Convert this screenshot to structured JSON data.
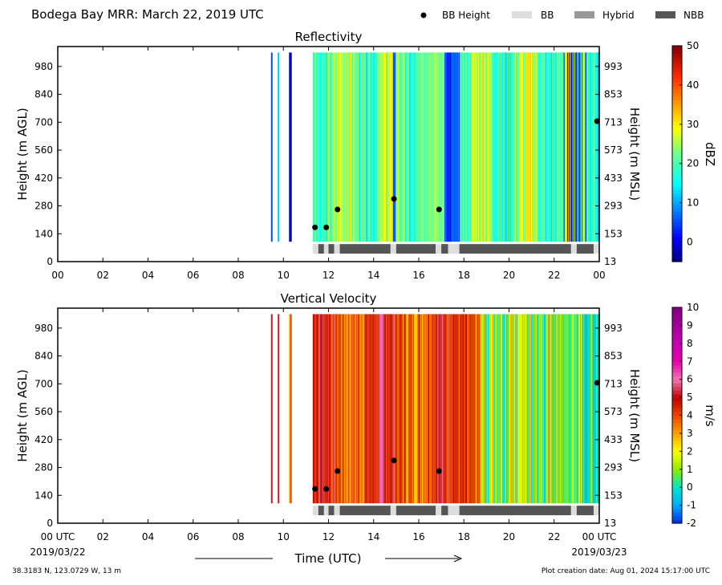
{
  "figure": {
    "title": "Bodega Bay MRR:  March 22, 2019 UTC",
    "footer_left": "38.3183 N, 123.0729 W, 13 m",
    "footer_right": "Plot creation date: Aug 01, 2024 15:17:00 UTC",
    "xlabel": "Time (UTC)",
    "date_start": "2019/03/22",
    "date_end": "2019/03/23"
  },
  "legend": [
    {
      "label": "BB Height",
      "kind": "dot",
      "color": "#000000"
    },
    {
      "label": "BB",
      "kind": "box",
      "color": "#dddddd"
    },
    {
      "label": "Hybrid",
      "kind": "box",
      "color": "#999999"
    },
    {
      "label": "NBB",
      "kind": "box",
      "color": "#555555"
    }
  ],
  "chart_data": [
    {
      "type": "heatmap",
      "title": "Reflectivity",
      "ylabel": "Height (m AGL)",
      "y2label": "Height (m MSL)",
      "colorbar_label": "dBZ",
      "xlim": [
        0,
        24
      ],
      "ylim": [
        0,
        1080
      ],
      "x_ticks": [
        "00",
        "02",
        "04",
        "06",
        "08",
        "10",
        "12",
        "14",
        "16",
        "18",
        "20",
        "22",
        "00"
      ],
      "y_ticks": [
        0,
        140,
        280,
        420,
        560,
        700,
        840,
        980
      ],
      "y2_ticks": [
        13,
        153,
        293,
        433,
        573,
        713,
        853,
        993
      ],
      "colorbar_range": [
        -5,
        50
      ],
      "colorbar_ticks": [
        0,
        10,
        20,
        30,
        40,
        50
      ],
      "colormap": "jet",
      "bb_height_points": [
        {
          "x": 11.4,
          "y": 172
        },
        {
          "x": 11.9,
          "y": 172
        },
        {
          "x": 12.4,
          "y": 262
        },
        {
          "x": 14.9,
          "y": 315
        },
        {
          "x": 16.9,
          "y": 262
        },
        {
          "x": 23.9,
          "y": 705
        }
      ],
      "bb_type_segments": [
        {
          "start": 11.3,
          "end": 11.55,
          "type": "BB"
        },
        {
          "start": 11.55,
          "end": 11.8,
          "type": "NBB"
        },
        {
          "start": 11.8,
          "end": 12.0,
          "type": "BB"
        },
        {
          "start": 12.0,
          "end": 12.25,
          "type": "NBB"
        },
        {
          "start": 12.25,
          "end": 12.5,
          "type": "BB"
        },
        {
          "start": 12.5,
          "end": 14.75,
          "type": "NBB"
        },
        {
          "start": 14.75,
          "end": 15.0,
          "type": "BB"
        },
        {
          "start": 15.0,
          "end": 16.75,
          "type": "NBB"
        },
        {
          "start": 16.75,
          "end": 17.0,
          "type": "BB"
        },
        {
          "start": 17.0,
          "end": 17.3,
          "type": "NBB"
        },
        {
          "start": 17.3,
          "end": 17.8,
          "type": "BB"
        },
        {
          "start": 17.8,
          "end": 22.75,
          "type": "NBB"
        },
        {
          "start": 22.75,
          "end": 23.0,
          "type": "BB"
        },
        {
          "start": 23.0,
          "end": 23.75,
          "type": "NBB"
        },
        {
          "start": 23.75,
          "end": 24.0,
          "type": "BB"
        }
      ]
    },
    {
      "type": "heatmap",
      "title": "Vertical Velocity",
      "ylabel": "Height (m AGL)",
      "y2label": "Height (m MSL)",
      "colorbar_label": "m/s",
      "xlim": [
        0,
        24
      ],
      "ylim": [
        0,
        1080
      ],
      "x_ticks": [
        "00 UTC",
        "02",
        "04",
        "06",
        "08",
        "10",
        "12",
        "14",
        "16",
        "18",
        "20",
        "22",
        "00 UTC"
      ],
      "y_ticks": [
        0,
        140,
        280,
        420,
        560,
        700,
        840,
        980
      ],
      "y2_ticks": [
        13,
        153,
        293,
        433,
        573,
        713,
        853,
        993
      ],
      "colorbar_range": [
        -2,
        10
      ],
      "colorbar_ticks": [
        -2,
        -1,
        0,
        1,
        2,
        3,
        4,
        5,
        6,
        7,
        8,
        9,
        10
      ],
      "colormap": "velocity",
      "bb_height_points": [
        {
          "x": 11.4,
          "y": 172
        },
        {
          "x": 11.9,
          "y": 172
        },
        {
          "x": 12.4,
          "y": 262
        },
        {
          "x": 14.9,
          "y": 315
        },
        {
          "x": 16.9,
          "y": 262
        },
        {
          "x": 23.9,
          "y": 705
        }
      ],
      "bb_type_segments": [
        {
          "start": 11.3,
          "end": 11.55,
          "type": "BB"
        },
        {
          "start": 11.55,
          "end": 11.8,
          "type": "NBB"
        },
        {
          "start": 11.8,
          "end": 12.0,
          "type": "BB"
        },
        {
          "start": 12.0,
          "end": 12.25,
          "type": "NBB"
        },
        {
          "start": 12.25,
          "end": 12.5,
          "type": "BB"
        },
        {
          "start": 12.5,
          "end": 14.75,
          "type": "NBB"
        },
        {
          "start": 14.75,
          "end": 15.0,
          "type": "BB"
        },
        {
          "start": 15.0,
          "end": 16.75,
          "type": "NBB"
        },
        {
          "start": 16.75,
          "end": 17.0,
          "type": "BB"
        },
        {
          "start": 17.0,
          "end": 17.3,
          "type": "NBB"
        },
        {
          "start": 17.3,
          "end": 17.8,
          "type": "BB"
        },
        {
          "start": 17.8,
          "end": 22.75,
          "type": "NBB"
        },
        {
          "start": 22.75,
          "end": 23.0,
          "type": "BB"
        },
        {
          "start": 23.0,
          "end": 23.75,
          "type": "NBB"
        },
        {
          "start": 23.75,
          "end": 24.0,
          "type": "BB"
        }
      ]
    }
  ]
}
